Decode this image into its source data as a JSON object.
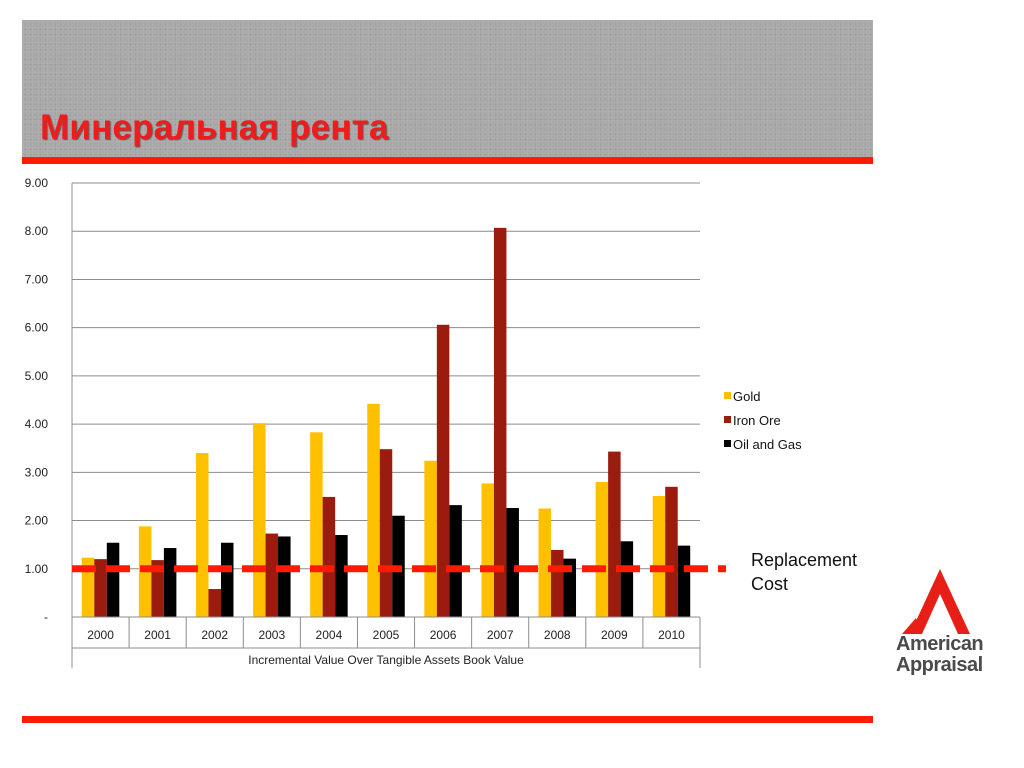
{
  "slide": {
    "title": "Минеральная рента",
    "accent_color": "#ff1a00",
    "replacement_cost_label": "Replacement Cost"
  },
  "logo": {
    "line1": "American",
    "line2": "Appraisal",
    "icon": "triangle-arrow-icon"
  },
  "chart_data": {
    "type": "bar",
    "categories": [
      "2000",
      "2001",
      "2002",
      "2003",
      "2004",
      "2005",
      "2006",
      "2007",
      "2008",
      "2009",
      "2010"
    ],
    "series": [
      {
        "name": "Gold",
        "color": "#ffc000",
        "values": [
          1.23,
          1.88,
          3.4,
          4.02,
          3.83,
          4.42,
          3.24,
          2.77,
          2.25,
          2.8,
          2.51
        ]
      },
      {
        "name": "Iron Ore",
        "color": "#9b1c0f",
        "values": [
          1.2,
          1.18,
          0.58,
          1.73,
          2.49,
          3.48,
          6.06,
          8.07,
          1.39,
          3.43,
          2.7
        ]
      },
      {
        "name": "Oil and Gas",
        "color": "#000000",
        "values": [
          1.54,
          1.43,
          1.54,
          1.67,
          1.7,
          2.1,
          2.32,
          2.26,
          1.21,
          1.57,
          1.48
        ]
      }
    ],
    "ylim": [
      0,
      9
    ],
    "yticks": [
      "-",
      "1.00",
      "2.00",
      "3.00",
      "4.00",
      "5.00",
      "6.00",
      "7.00",
      "8.00",
      "9.00"
    ],
    "xlabel": "Incremental Value Over Tangible Assets Book Value",
    "ylabel": "",
    "grid": true,
    "legend_position": "right",
    "reference_line": {
      "value": 1.0,
      "style": "dashed",
      "color": "#ff1a00"
    }
  }
}
